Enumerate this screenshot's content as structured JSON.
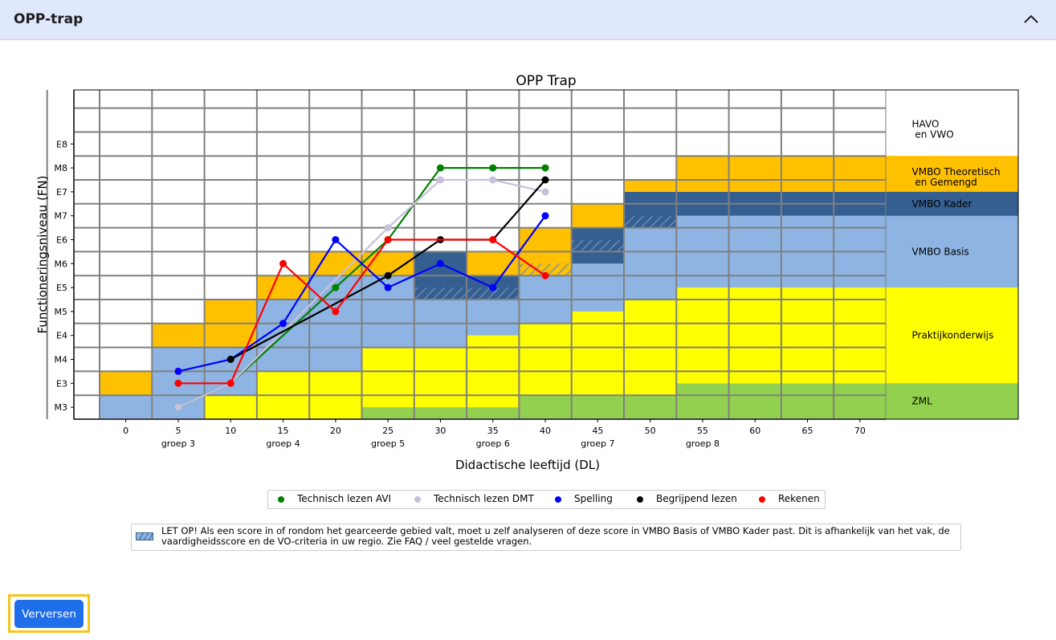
{
  "panel": {
    "title": "OPP-trap",
    "collapse_icon": "chevron-up-icon"
  },
  "button": {
    "label": "Verversen"
  },
  "legend": [
    {
      "label": "Technisch lezen AVI",
      "color": "#008000"
    },
    {
      "label": "Technisch lezen DMT",
      "color": "#c8bfdc"
    },
    {
      "label": "Spelling",
      "color": "#0000ff"
    },
    {
      "label": "Begrijpend lezen",
      "color": "#000000"
    },
    {
      "label": "Rekenen",
      "color": "#ff0000"
    }
  ],
  "note": "LET OP! Als een score in of rondom het gearceerde gebied valt, moet u zelf analyseren of deze score in VMBO Basis of VMBO Kader past. Dit is afhankelijk van het vak, de vaardigheidsscore en de VO-criteria in uw regio. Zie FAQ / veel gestelde vragen.",
  "chart_data": {
    "type": "line",
    "title": "OPP Trap",
    "xlabel": "Didactische leeftijd (DL)",
    "ylabel": "Functioneringsniveau (FN)",
    "x_ticks": [
      0,
      5,
      10,
      15,
      20,
      25,
      30,
      35,
      40,
      45,
      50,
      55,
      60,
      65,
      70
    ],
    "groups": [
      {
        "label": "groep 3",
        "x": 5
      },
      {
        "label": "groep 4",
        "x": 15
      },
      {
        "label": "groep 5",
        "x": 25
      },
      {
        "label": "groep 6",
        "x": 35
      },
      {
        "label": "groep 7",
        "x": 45
      },
      {
        "label": "groep 8",
        "x": 55
      }
    ],
    "y_ticks": [
      "M3",
      "E3",
      "M4",
      "E4",
      "M5",
      "E5",
      "M6",
      "E6",
      "M7",
      "E7",
      "M8",
      "E8"
    ],
    "xlim": [
      -5,
      85
    ],
    "ylim": [
      -0.5,
      13.25
    ],
    "grid": true,
    "legend_position": "bottom",
    "zones": [
      {
        "label": "HAVO\n en VWO",
        "color": "#ffffff"
      },
      {
        "label": "VMBO Theoretisch\n en Gemengd",
        "color": "#ffc000"
      },
      {
        "label": "VMBO Kader",
        "color": "#355f91"
      },
      {
        "label": "VMBO Basis",
        "color": "#8db4e2"
      },
      {
        "label": "Praktijkonderwijs",
        "color": "#ffff00"
      },
      {
        "label": "ZML",
        "color": "#92d050"
      }
    ],
    "series": [
      {
        "name": "Technisch lezen AVI",
        "color": "#008000",
        "x": [
          5,
          10,
          20,
          25,
          30,
          35,
          40
        ],
        "y": [
          "M3",
          "E3",
          "E5",
          "E6",
          "M8",
          "M8",
          "M8"
        ]
      },
      {
        "name": "Technisch lezen DMT",
        "color": "#c8bfdc",
        "x": [
          5,
          10,
          25,
          30,
          35,
          40
        ],
        "y": [
          "M3",
          "E3",
          7.5,
          9.5,
          9.5,
          9
        ]
      },
      {
        "name": "Spelling",
        "color": "#0000ff",
        "x": [
          5,
          10,
          15,
          20,
          25,
          30,
          35,
          40
        ],
        "y": [
          1.5,
          "M4",
          3.5,
          "E6",
          "E5",
          "M6",
          "E5",
          "M7"
        ]
      },
      {
        "name": "Begrijpend lezen",
        "color": "#000000",
        "x": [
          10,
          25,
          30,
          35,
          40
        ],
        "y": [
          "M4",
          5.5,
          "E6",
          "E6",
          9.5
        ]
      },
      {
        "name": "Rekenen",
        "color": "#ff0000",
        "x": [
          5,
          10,
          15,
          20,
          25,
          35,
          40
        ],
        "y": [
          "E3",
          "E3",
          "M6",
          "M5",
          "E6",
          "E6",
          5.5
        ]
      }
    ]
  }
}
